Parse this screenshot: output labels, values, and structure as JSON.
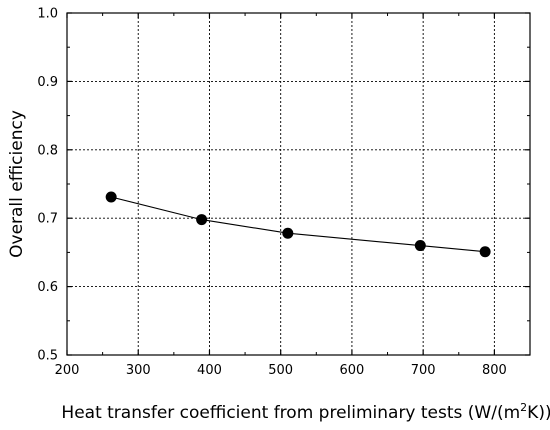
{
  "chart_data": {
    "type": "line",
    "title": "",
    "xlabel": "Heat transfer coefficient from preliminary tests (W/(m²K))",
    "xlabel_parts": {
      "before": "Heat transfer coefficient from preliminary tests (W/(m",
      "superscript": "2",
      "after": "K))"
    },
    "ylabel": "Overall efficiency",
    "xlim": [
      200,
      850
    ],
    "ylim": [
      0.5,
      1.0
    ],
    "xticks": [
      200,
      300,
      400,
      500,
      600,
      700,
      800
    ],
    "xtick_labels": [
      "200",
      "300",
      "400",
      "500",
      "600",
      "700",
      "800"
    ],
    "yticks": [
      0.5,
      0.6,
      0.7,
      0.8,
      0.9,
      1.0
    ],
    "ytick_labels": [
      "0.5",
      "0.6",
      "0.7",
      "0.8",
      "0.9",
      "1.0"
    ],
    "grid": true,
    "grid_style": "dotted",
    "marker": "filled-circle",
    "colors": {
      "line": "#000000",
      "marker": "#000000",
      "grid": "#000000",
      "axis": "#000000"
    },
    "series": [
      {
        "x": [
          262,
          389,
          510,
          696,
          787
        ],
        "y": [
          0.731,
          0.698,
          0.678,
          0.66,
          0.651
        ]
      }
    ]
  }
}
